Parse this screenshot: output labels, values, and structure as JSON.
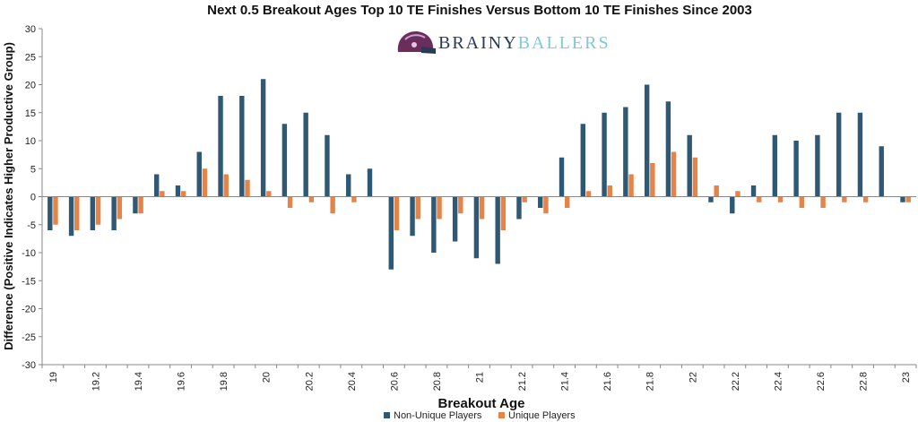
{
  "chart_data": {
    "type": "bar",
    "title": "Next 0.5 Breakout Ages Top 10 TE Finishes Versus Bottom 10 TE Finishes Since 2003",
    "xlabel": "Breakout Age",
    "ylabel": "Difference (Positive Indicates Higher Productive Group)",
    "ylim": [
      -30,
      30
    ],
    "y_ticks": [
      -30,
      -25,
      -20,
      -15,
      -10,
      -5,
      0,
      5,
      10,
      15,
      20,
      25,
      30
    ],
    "grid": false,
    "legend_placement": "bottom",
    "categories": [
      "19",
      "19.1",
      "19.2",
      "19.3",
      "19.4",
      "19.5",
      "19.6",
      "19.7",
      "19.8",
      "19.9",
      "20",
      "20.1",
      "20.2",
      "20.3",
      "20.4",
      "20.5",
      "20.6",
      "20.7",
      "20.8",
      "20.9",
      "21",
      "21.1",
      "21.2",
      "21.3",
      "21.4",
      "21.5",
      "21.6",
      "21.7",
      "21.8",
      "21.9",
      "22",
      "22.1",
      "22.2",
      "22.3",
      "22.4",
      "22.5",
      "22.6",
      "22.7",
      "22.8",
      "22.9",
      "23"
    ],
    "tick_labels": [
      "19",
      "19.2",
      "19.4",
      "19.6",
      "19.8",
      "20",
      "20.2",
      "20.4",
      "20.6",
      "20.8",
      "21",
      "21.2",
      "21.4",
      "21.6",
      "21.8",
      "22",
      "22.2",
      "22.4",
      "22.6",
      "22.8",
      "23"
    ],
    "series": [
      {
        "name": "Non-Unique Players",
        "color": "#2e5873",
        "values": [
          -6,
          -7,
          -6,
          -6,
          -3,
          4,
          2,
          8,
          18,
          18,
          21,
          13,
          15,
          11,
          4,
          5,
          -13,
          -7,
          -10,
          -8,
          -11,
          -12,
          -4,
          -2,
          7,
          13,
          15,
          16,
          20,
          17,
          11,
          -1,
          -3,
          2,
          11,
          10,
          11,
          15,
          15,
          9,
          -1
        ]
      },
      {
        "name": "Unique Players",
        "color": "#e3844a",
        "values": [
          -5,
          -6,
          -5,
          -4,
          -3,
          1,
          1,
          5,
          4,
          3,
          1,
          -2,
          -1,
          -3,
          -1,
          0,
          -6,
          -4,
          -4,
          -3,
          -4,
          -6,
          -1,
          -3,
          -2,
          1,
          2,
          4,
          6,
          8,
          7,
          2,
          1,
          -1,
          -1,
          -2,
          -2,
          -1,
          -1,
          0,
          -1
        ]
      }
    ]
  },
  "logo": {
    "word_dark": "BRAINY",
    "word_light": "BALLERS",
    "color_dark": "#2a3a55",
    "color_light": "#7fc8d8"
  }
}
